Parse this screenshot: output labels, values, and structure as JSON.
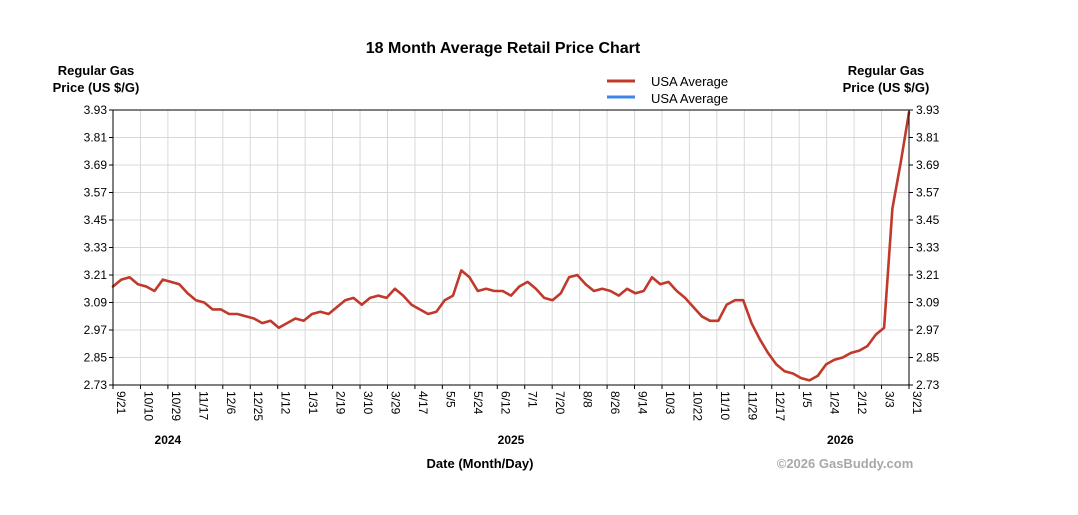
{
  "chart_data": {
    "type": "line",
    "title": "18 Month Average Retail Price Chart",
    "ylabel_left": [
      "Regular Gas",
      "Price (US $/G)"
    ],
    "ylabel_right": [
      "Regular Gas",
      "Price (US $/G)"
    ],
    "xlabel": "Date (Month/Day)",
    "credit": "©2026 GasBuddy.com",
    "ylim": [
      2.73,
      3.93
    ],
    "y_ticks": [
      "3.93",
      "3.81",
      "3.69",
      "3.57",
      "3.45",
      "3.33",
      "3.21",
      "3.09",
      "2.97",
      "2.85",
      "2.73"
    ],
    "x_ticks": [
      "9/21",
      "10/10",
      "10/29",
      "11/17",
      "12/6",
      "12/25",
      "1/12",
      "1/31",
      "2/19",
      "3/10",
      "3/29",
      "4/17",
      "5/5",
      "5/24",
      "6/12",
      "7/1",
      "7/20",
      "8/8",
      "8/26",
      "9/14",
      "10/3",
      "10/22",
      "11/10",
      "11/29",
      "12/17",
      "1/5",
      "1/24",
      "2/12",
      "3/3",
      "3/21"
    ],
    "years": [
      {
        "label": "2024",
        "tick_index": 2
      },
      {
        "label": "2025",
        "tick_index": 14.5
      },
      {
        "label": "2026",
        "tick_index": 26.5
      }
    ],
    "grid": true,
    "legend_position": "top-right",
    "series": [
      {
        "name": "USA Average",
        "color": "#c0392b",
        "values": [
          3.16,
          3.19,
          3.2,
          3.17,
          3.16,
          3.14,
          3.19,
          3.18,
          3.17,
          3.13,
          3.1,
          3.09,
          3.06,
          3.06,
          3.04,
          3.04,
          3.03,
          3.02,
          3.0,
          3.01,
          2.98,
          3.0,
          3.02,
          3.01,
          3.04,
          3.05,
          3.04,
          3.07,
          3.1,
          3.11,
          3.08,
          3.11,
          3.12,
          3.11,
          3.15,
          3.12,
          3.08,
          3.06,
          3.04,
          3.05,
          3.1,
          3.12,
          3.23,
          3.2,
          3.14,
          3.15,
          3.14,
          3.14,
          3.12,
          3.16,
          3.18,
          3.15,
          3.11,
          3.1,
          3.13,
          3.2,
          3.21,
          3.17,
          3.14,
          3.15,
          3.14,
          3.12,
          3.15,
          3.13,
          3.14,
          3.2,
          3.17,
          3.18,
          3.14,
          3.11,
          3.07,
          3.03,
          3.01,
          3.01,
          3.08,
          3.1,
          3.1,
          3.0,
          2.93,
          2.87,
          2.82,
          2.79,
          2.78,
          2.76,
          2.75,
          2.77,
          2.82,
          2.84,
          2.85,
          2.87,
          2.88,
          2.9,
          2.95,
          2.98,
          3.5,
          3.7,
          3.92
        ]
      },
      {
        "name": "USA Average",
        "color": "#3d85e6",
        "values": []
      }
    ]
  }
}
